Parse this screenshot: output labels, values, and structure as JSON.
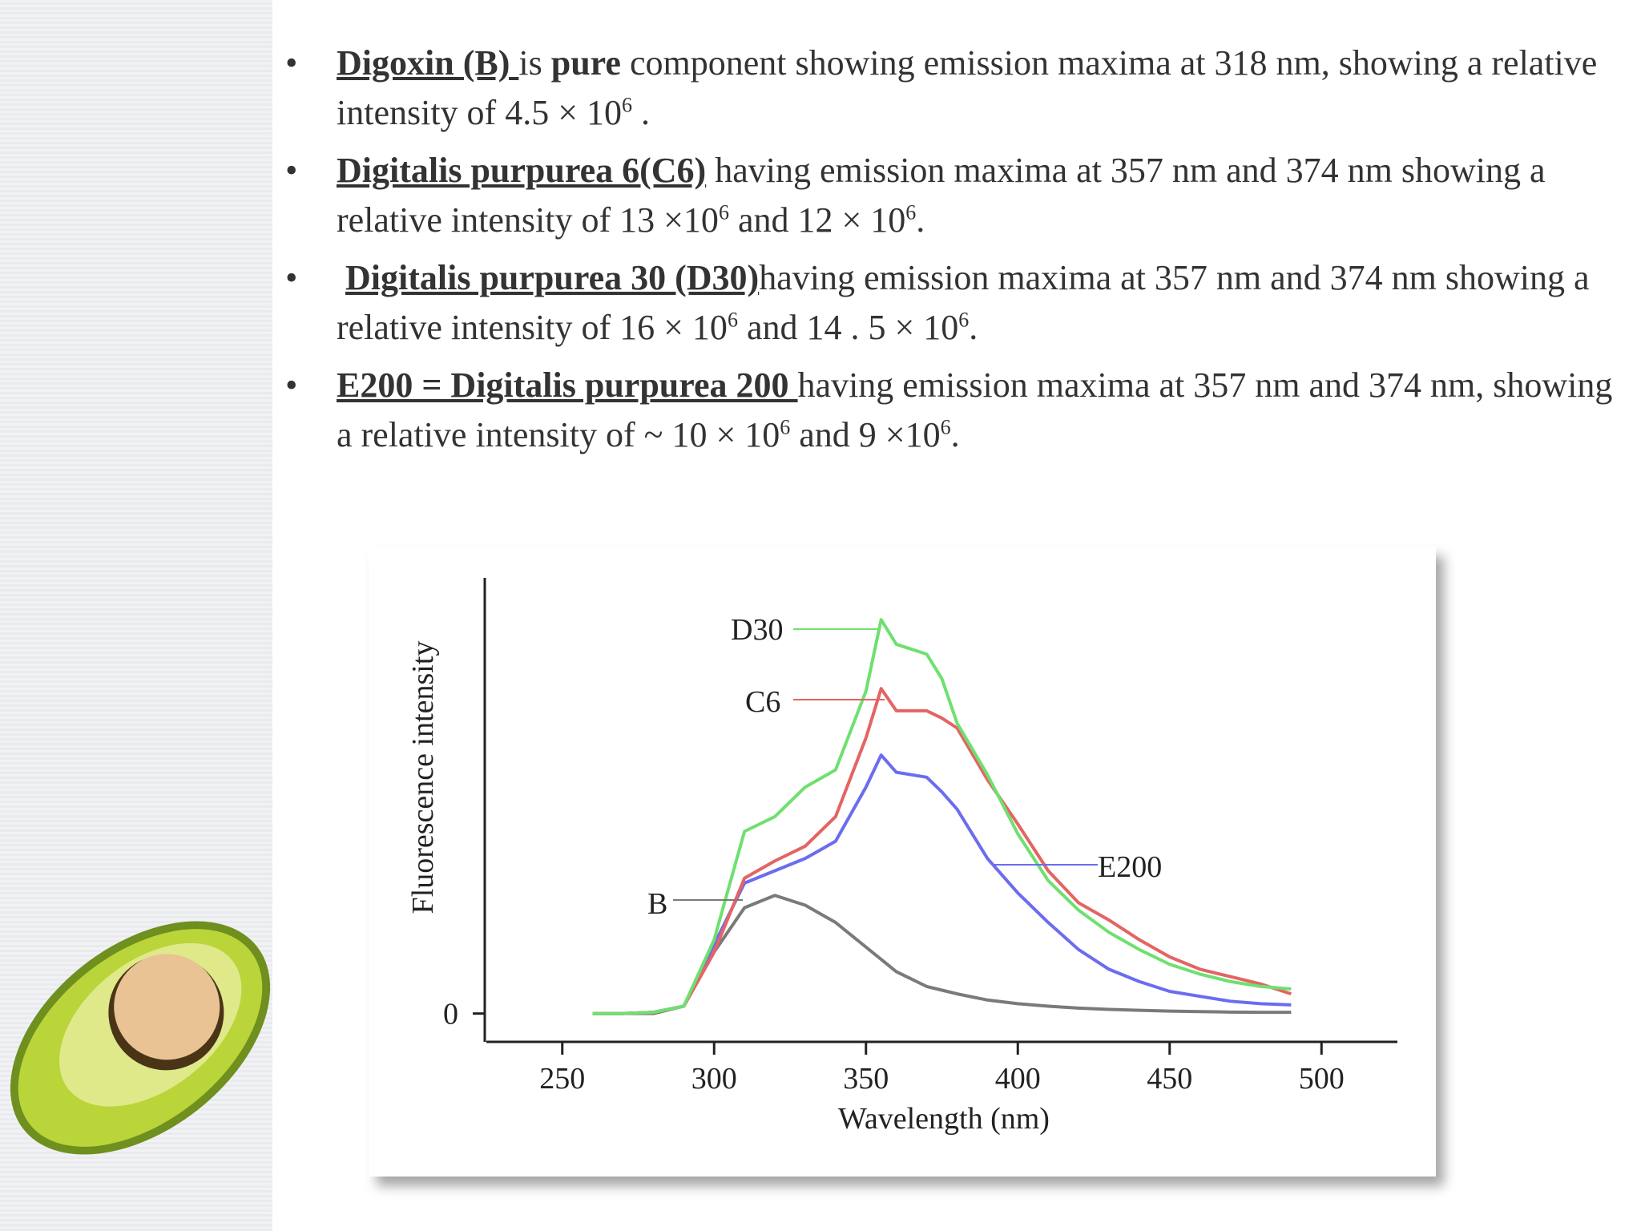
{
  "bullets": [
    [
      "Digoxin (B) ",
      "is ",
      "pure",
      " component showing emission  maxima at 318 nm, showing a relative intensity   of 4.5 × 10",
      "6",
      "  ."
    ],
    [
      "Digitalis purpurea 6(C6)",
      " having emission maxima at 357 nm and 374 nm showing a relative intensity of  13 ×10",
      "6",
      "  and 12 × 10",
      "6",
      "."
    ],
    [
      "Digitalis purpurea 30 (D30)",
      "having emission maxima at 357 nm and 374 nm showing a relative intensity of 16 × 10",
      "6",
      "  and 14 . 5 ×  10",
      "6",
      "."
    ],
    [
      "E200 = Digitalis purpurea 200 ",
      "having emission maxima at 357 nm and 374 nm, showing a relative intensity of ~ 10 × 10",
      "6",
      "  and 9 ×10",
      "6",
      "."
    ]
  ],
  "chart_data": {
    "type": "line",
    "xlabel": "Wavelength (nm)",
    "ylabel": "Fluorescence intensity",
    "x": [
      260,
      270,
      280,
      290,
      300,
      310,
      320,
      330,
      340,
      350,
      355,
      360,
      370,
      375,
      380,
      390,
      400,
      410,
      420,
      430,
      440,
      450,
      460,
      470,
      480,
      490
    ],
    "series": [
      {
        "name": "D30",
        "color": "#6fe06f",
        "values": [
          0,
          0,
          0.05,
          0.3,
          3,
          7.4,
          8.0,
          9.2,
          9.9,
          13.1,
          16,
          15,
          14.6,
          13.6,
          11.8,
          9.7,
          7.3,
          5.4,
          4.2,
          3.3,
          2.6,
          2.0,
          1.6,
          1.3,
          1.1,
          1.0
        ]
      },
      {
        "name": "C6",
        "color": "#e46464",
        "values": [
          0,
          0,
          0.05,
          0.3,
          2.5,
          5.5,
          6.2,
          6.8,
          8.0,
          11.2,
          13.2,
          12.3,
          12.3,
          12.0,
          11.6,
          9.5,
          7.7,
          5.8,
          4.5,
          3.8,
          3.0,
          2.3,
          1.8,
          1.5,
          1.2,
          0.8
        ]
      },
      {
        "name": "E200",
        "color": "#6c6cf0",
        "values": [
          0,
          0,
          0.05,
          0.3,
          2.8,
          5.3,
          5.8,
          6.3,
          7.0,
          9.2,
          10.5,
          9.8,
          9.6,
          9.0,
          8.3,
          6.3,
          4.9,
          3.7,
          2.6,
          1.8,
          1.3,
          0.9,
          0.7,
          0.5,
          0.4,
          0.35
        ]
      },
      {
        "name": "B",
        "color": "#7a7a7a",
        "values": [
          0,
          0,
          0,
          0.3,
          2.5,
          4.3,
          4.8,
          4.4,
          3.7,
          2.7,
          2.2,
          1.7,
          1.1,
          0.95,
          0.8,
          0.55,
          0.4,
          0.3,
          0.22,
          0.17,
          0.13,
          0.1,
          0.08,
          0.06,
          0.05,
          0.05
        ]
      }
    ],
    "xlim": [
      225,
      525
    ],
    "xticks": [
      250,
      300,
      350,
      400,
      450,
      500
    ],
    "ylim": [
      -1.15,
      17.7
    ],
    "yticks": [
      0
    ]
  }
}
